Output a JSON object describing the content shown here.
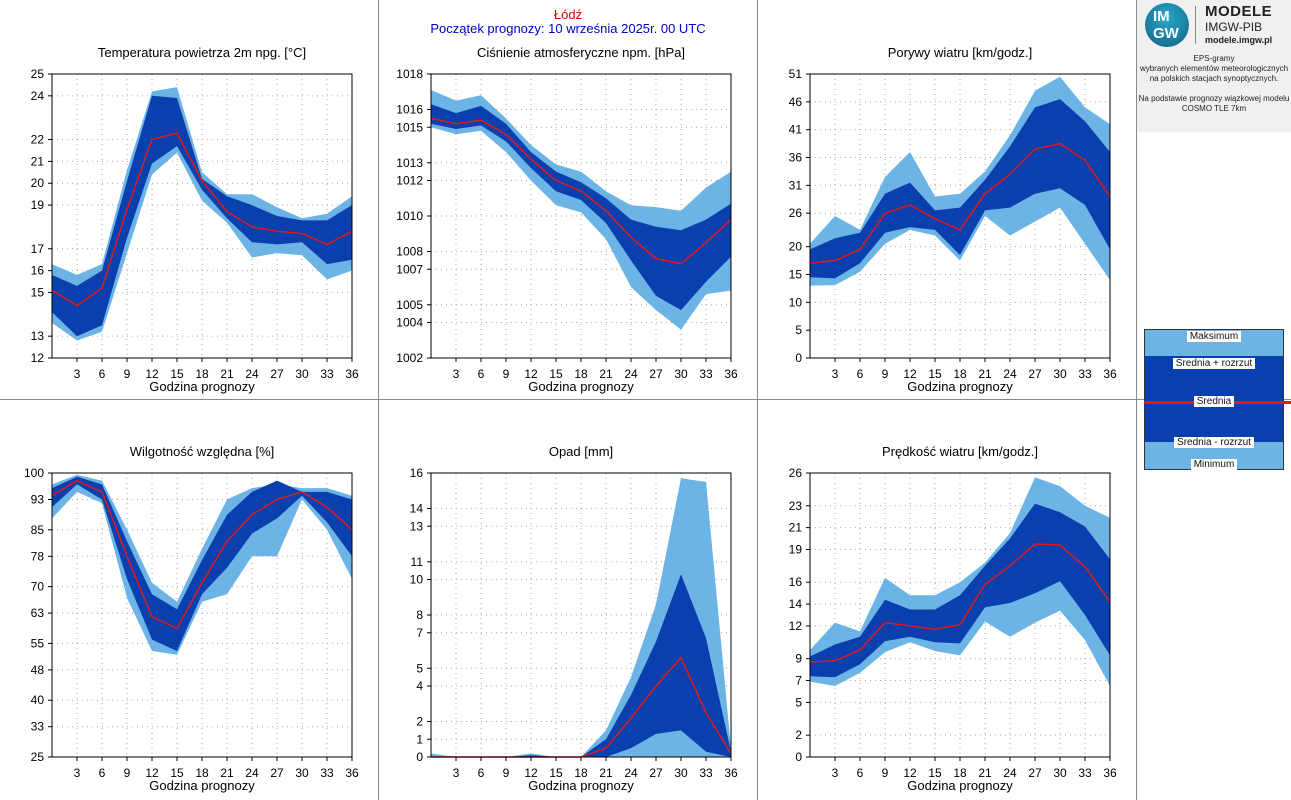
{
  "header": {
    "station": "Łódź",
    "init": "Początek prognozy: 10 września 2025r. 00 UTC"
  },
  "logo": {
    "mark_top": "IM",
    "mark_bottom": "GW",
    "line1": "MODELE",
    "line2": "IMGW-PIB",
    "line3": "modele.imgw.pl"
  },
  "info": "EPS-gramy\nwybranych elementów meteorologicznych\nna polskich stacjach  synoptycznych.\n\nNa podstawie prognozy wiązkowej modelu\nCOSMO TLE 7km",
  "legend": {
    "max": "Maksimum",
    "mean_plus": "Średnia + rozrzut",
    "mean": "Średnia",
    "mean_minus": "Średnia - rozrzut",
    "min": "Minimum"
  },
  "colors": {
    "outer_band": "#6cb4e6",
    "inner_band": "#0a3fae",
    "mean_line": "#e01818",
    "header_station": "#e00000",
    "header_init": "#0000c8"
  },
  "chart_data": [
    {
      "id": "temp",
      "type": "area",
      "title": "Temperatura powietrza 2m npg. [°C]",
      "xlabel": "Godzina prognozy",
      "x": [
        0,
        3,
        6,
        9,
        12,
        15,
        18,
        21,
        24,
        27,
        30,
        33,
        36
      ],
      "xticks": [
        3,
        6,
        9,
        12,
        15,
        18,
        21,
        24,
        27,
        30,
        33,
        36
      ],
      "ylim": [
        12,
        25
      ],
      "yticks": [
        12,
        13,
        15,
        16,
        17,
        19,
        20,
        21,
        22,
        24,
        25
      ],
      "max": [
        16.3,
        15.8,
        16.3,
        20.6,
        24.2,
        24.4,
        20.5,
        19.5,
        19.5,
        18.9,
        18.4,
        18.6,
        19.4
      ],
      "p": [
        15.8,
        15.3,
        16.0,
        20.1,
        24.0,
        23.9,
        20.2,
        19.4,
        19.0,
        18.5,
        18.3,
        18.3,
        19.0
      ],
      "mean": [
        15.1,
        14.4,
        15.2,
        18.8,
        22.0,
        22.3,
        20.1,
        18.7,
        18.0,
        17.8,
        17.7,
        17.2,
        17.8
      ],
      "m": [
        14.1,
        13.0,
        13.5,
        17.5,
        20.9,
        21.7,
        19.7,
        18.4,
        17.3,
        17.2,
        17.3,
        16.3,
        16.5
      ],
      "min": [
        13.6,
        12.8,
        13.2,
        16.8,
        20.4,
        21.4,
        19.2,
        18.2,
        16.6,
        16.8,
        16.7,
        15.6,
        16.0
      ]
    },
    {
      "id": "pressure",
      "type": "area",
      "title": "Ciśnienie atmosferyczne npm. [hPa]",
      "xlabel": "Godzina prognozy",
      "x": [
        0,
        3,
        6,
        9,
        12,
        15,
        18,
        21,
        24,
        27,
        30,
        33,
        36
      ],
      "xticks": [
        3,
        6,
        9,
        12,
        15,
        18,
        21,
        24,
        27,
        30,
        33,
        36
      ],
      "ylim": [
        1002,
        1018
      ],
      "yticks": [
        1002,
        1004,
        1005,
        1007,
        1008,
        1010,
        1012,
        1013,
        1015,
        1016,
        1018
      ],
      "max": [
        1017.1,
        1016.5,
        1016.8,
        1015.5,
        1014.0,
        1012.9,
        1012.5,
        1011.4,
        1010.6,
        1010.5,
        1010.3,
        1011.6,
        1012.5
      ],
      "p": [
        1016.3,
        1015.8,
        1016.2,
        1015.2,
        1013.6,
        1012.5,
        1011.9,
        1011.0,
        1009.8,
        1009.4,
        1009.2,
        1009.8,
        1010.7
      ],
      "mean": [
        1015.5,
        1015.2,
        1015.4,
        1014.6,
        1013.2,
        1012.0,
        1011.4,
        1010.3,
        1008.8,
        1007.6,
        1007.3,
        1008.5,
        1009.8
      ],
      "m": [
        1015.2,
        1014.9,
        1015.1,
        1014.2,
        1012.7,
        1011.4,
        1010.9,
        1009.6,
        1007.5,
        1005.5,
        1004.7,
        1006.3,
        1007.7
      ],
      "min": [
        1015.0,
        1014.6,
        1014.8,
        1013.6,
        1012.0,
        1010.6,
        1010.2,
        1008.7,
        1006.0,
        1004.7,
        1003.6,
        1005.6,
        1005.8
      ]
    },
    {
      "id": "gusts",
      "type": "area",
      "title": "Porywy wiatru [km/godz.]",
      "xlabel": "Godzina prognozy",
      "x": [
        0,
        3,
        6,
        9,
        12,
        15,
        18,
        21,
        24,
        27,
        30,
        33,
        36
      ],
      "xticks": [
        3,
        6,
        9,
        12,
        15,
        18,
        21,
        24,
        27,
        30,
        33,
        36
      ],
      "ylim": [
        0,
        51
      ],
      "yticks": [
        0,
        5,
        10,
        15,
        20,
        26,
        31,
        36,
        41,
        46,
        51
      ],
      "max": [
        20.5,
        25.5,
        23.0,
        32.5,
        37.0,
        29.0,
        29.5,
        33.5,
        40.0,
        48.0,
        50.5,
        45.0,
        42.0
      ],
      "p": [
        19.5,
        21.5,
        22.5,
        29.5,
        31.5,
        26.5,
        27.0,
        32.0,
        38.0,
        45.0,
        46.5,
        42.5,
        37.0
      ],
      "mean": [
        17.0,
        17.5,
        19.5,
        26.0,
        27.5,
        25.0,
        23.0,
        29.5,
        33.0,
        37.5,
        38.5,
        35.5,
        29.0
      ],
      "m": [
        14.5,
        14.3,
        17.0,
        22.5,
        23.5,
        23.0,
        18.5,
        26.5,
        27.0,
        29.5,
        30.5,
        27.5,
        19.5
      ],
      "min": [
        13.0,
        13.1,
        15.5,
        20.5,
        23.0,
        22.0,
        17.5,
        25.5,
        22.0,
        24.5,
        27.0,
        20.5,
        14.0
      ]
    },
    {
      "id": "humidity",
      "type": "area",
      "title": "Wilgotność względna [%]",
      "xlabel": "Godzina prognozy",
      "x": [
        0,
        3,
        6,
        9,
        12,
        15,
        18,
        21,
        24,
        27,
        30,
        33,
        36
      ],
      "xticks": [
        3,
        6,
        9,
        12,
        15,
        18,
        21,
        24,
        27,
        30,
        33,
        36
      ],
      "ylim": [
        25,
        100
      ],
      "yticks": [
        25,
        33,
        40,
        48,
        55,
        63,
        70,
        78,
        85,
        93,
        100
      ],
      "max": [
        97,
        99.5,
        98,
        85,
        71,
        66,
        80,
        93,
        96,
        97,
        96,
        96,
        94
      ],
      "p": [
        96,
        99,
        97,
        82,
        68,
        64,
        77,
        89,
        95,
        98,
        95,
        95,
        93
      ],
      "mean": [
        94,
        98,
        95,
        78,
        62,
        59,
        71,
        82,
        89,
        93,
        95,
        91,
        85
      ],
      "m": [
        91,
        97,
        93,
        72,
        56,
        53,
        68,
        75,
        84,
        88,
        94,
        87,
        78
      ],
      "min": [
        88,
        95,
        92,
        67,
        53,
        52,
        66,
        68,
        78,
        78,
        93,
        85,
        72
      ]
    },
    {
      "id": "precip",
      "type": "area",
      "title": "Opad [mm]",
      "xlabel": "Godzina prognozy",
      "x": [
        0,
        3,
        6,
        9,
        12,
        15,
        18,
        21,
        24,
        27,
        30,
        33,
        36
      ],
      "xticks": [
        3,
        6,
        9,
        12,
        15,
        18,
        21,
        24,
        27,
        30,
        33,
        36
      ],
      "ylim": [
        0,
        16
      ],
      "yticks": [
        0,
        1,
        2,
        4,
        5,
        7,
        8,
        10,
        11,
        13,
        14,
        16
      ],
      "max": [
        0.2,
        0,
        0,
        0,
        0.2,
        0,
        0,
        1.5,
        4.5,
        8.6,
        15.7,
        15.5,
        0.5
      ],
      "p": [
        0,
        0,
        0,
        0,
        0.1,
        0,
        0,
        1.0,
        3.5,
        6.5,
        10.3,
        6.7,
        0.3
      ],
      "mean": [
        0,
        0,
        0,
        0,
        0,
        0,
        0,
        0.5,
        2.2,
        4.0,
        5.6,
        2.5,
        0.2
      ],
      "m": [
        0,
        0,
        0,
        0,
        0,
        0,
        0,
        0,
        0.5,
        1.3,
        1.5,
        0.3,
        0
      ],
      "min": [
        0,
        0,
        0,
        0,
        0,
        0,
        0,
        0,
        0,
        0,
        0,
        0,
        0
      ]
    },
    {
      "id": "wind",
      "type": "area",
      "title": "Prędkość wiatru [km/godz.]",
      "xlabel": "Godzina prognozy",
      "x": [
        0,
        3,
        6,
        9,
        12,
        15,
        18,
        21,
        24,
        27,
        30,
        33,
        36
      ],
      "xticks": [
        3,
        6,
        9,
        12,
        15,
        18,
        21,
        24,
        27,
        30,
        33,
        36
      ],
      "ylim": [
        0,
        26
      ],
      "yticks": [
        0,
        2,
        5,
        7,
        9,
        12,
        14,
        16,
        19,
        21,
        23,
        26
      ],
      "max": [
        9.8,
        12.3,
        11.5,
        16.4,
        14.8,
        14.8,
        16.0,
        17.8,
        20.5,
        25.6,
        24.8,
        23.0,
        21.9
      ],
      "p": [
        9.2,
        10.3,
        11.0,
        14.4,
        13.5,
        13.5,
        14.8,
        17.5,
        20.0,
        23.2,
        22.4,
        21.1,
        18.1
      ],
      "mean": [
        8.7,
        8.8,
        9.8,
        12.3,
        12.0,
        11.7,
        12.1,
        15.8,
        17.5,
        19.5,
        19.4,
        17.4,
        14.2
      ],
      "m": [
        7.4,
        7.3,
        8.5,
        10.6,
        11.0,
        10.5,
        10.4,
        13.7,
        14.1,
        15.0,
        16.1,
        13.0,
        9.3
      ],
      "min": [
        6.9,
        6.5,
        7.7,
        9.6,
        10.5,
        9.7,
        9.3,
        12.4,
        11.0,
        12.3,
        13.4,
        10.7,
        6.5
      ]
    }
  ]
}
